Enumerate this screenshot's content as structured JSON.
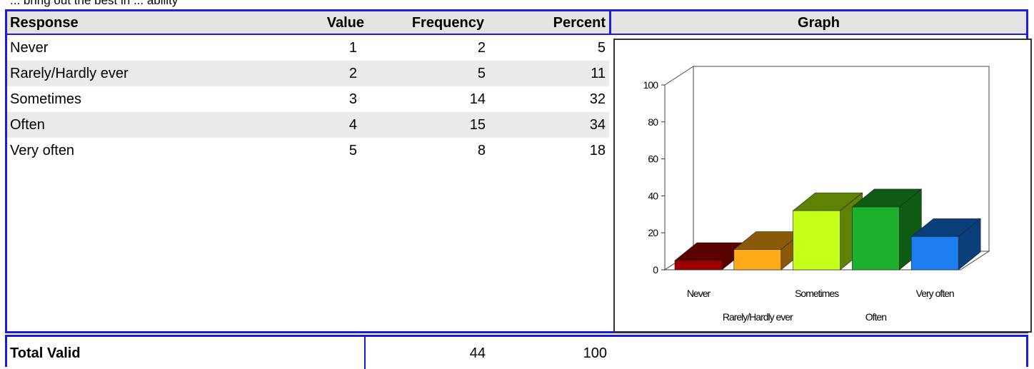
{
  "caption": "... bring out the best in ... ability",
  "table": {
    "headers": {
      "response": "Response",
      "value": "Value",
      "frequency": "Frequency",
      "percent": "Percent",
      "graph": "Graph"
    },
    "rows": [
      {
        "response": "Never",
        "value": "1",
        "frequency": "2",
        "percent": "5"
      },
      {
        "response": "Rarely/Hardly ever",
        "value": "2",
        "frequency": "5",
        "percent": "11"
      },
      {
        "response": "Sometimes",
        "value": "3",
        "frequency": "14",
        "percent": "32"
      },
      {
        "response": "Often",
        "value": "4",
        "frequency": "15",
        "percent": "34"
      },
      {
        "response": "Very often",
        "value": "5",
        "frequency": "8",
        "percent": "18"
      }
    ],
    "total": {
      "label": "Total Valid",
      "frequency": "44",
      "percent": "100"
    }
  },
  "chart_data": {
    "type": "bar",
    "categories": [
      "Never",
      "Rarely/Hardly ever",
      "Sometimes",
      "Often",
      "Very often"
    ],
    "values": [
      5,
      11,
      32,
      34,
      18
    ],
    "ylim": [
      0,
      100
    ],
    "yticks": [
      0,
      20,
      40,
      60,
      80,
      100
    ],
    "three_d": true,
    "colors": [
      "#9e0000",
      "#ffaa18",
      "#c6ff18",
      "#1cb02c",
      "#1c7ef0"
    ],
    "side_colors": [
      "#5a0000",
      "#8a5a08",
      "#5e8204",
      "#0e5c14",
      "#0a3e7a"
    ]
  }
}
